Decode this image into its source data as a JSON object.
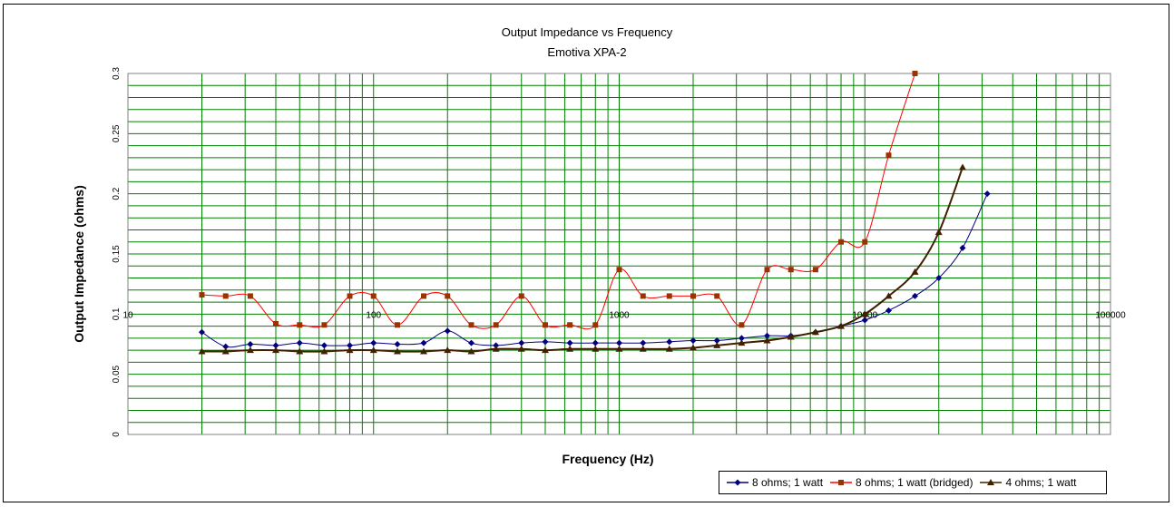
{
  "chart_data": {
    "type": "line",
    "title": "Output Impedance  vs Frequency",
    "subtitle": "Emotiva XPA-2",
    "xlabel": "Frequency (Hz)",
    "ylabel": "Output Impedance (ohms)",
    "x_scale": "log",
    "xlim": [
      10,
      100000
    ],
    "ylim": [
      0,
      0.3
    ],
    "x_ticks": [
      {
        "value": 10,
        "label": "10"
      },
      {
        "value": 100,
        "label": "100"
      },
      {
        "value": 1000,
        "label": "1000"
      },
      {
        "value": 10000,
        "label": "10000"
      },
      {
        "value": 100000,
        "label": "100000"
      }
    ],
    "y_ticks": [
      {
        "value": 0,
        "label": "0"
      },
      {
        "value": 0.05,
        "label": "0.05"
      },
      {
        "value": 0.1,
        "label": "0.1"
      },
      {
        "value": 0.15,
        "label": "0.15"
      },
      {
        "value": 0.2,
        "label": "0.2"
      },
      {
        "value": 0.25,
        "label": "0.25"
      },
      {
        "value": 0.3,
        "label": "0.3"
      }
    ],
    "grid": true,
    "grid_color": "#008000",
    "legend_position": "bottom-right",
    "x": [
      20,
      25,
      31.5,
      40,
      50,
      63,
      80,
      100,
      125,
      160,
      200,
      250,
      315,
      400,
      500,
      630,
      800,
      1000,
      1250,
      1600,
      2000,
      2500,
      3150,
      4000,
      5000,
      6300,
      8000,
      10000,
      12500,
      16000,
      20000,
      25000,
      31500,
      40000
    ],
    "series": [
      {
        "name": "8 ohms; 1 watt",
        "color": "#000080",
        "marker": "diamond",
        "values": [
          0.085,
          0.073,
          0.075,
          0.074,
          0.076,
          0.074,
          0.074,
          0.076,
          0.075,
          0.076,
          0.086,
          0.076,
          0.074,
          0.076,
          0.077,
          0.076,
          0.076,
          0.076,
          0.076,
          0.077,
          0.078,
          0.078,
          0.08,
          0.082,
          0.082,
          0.085,
          0.09,
          0.095,
          0.103,
          0.115,
          0.13,
          0.155,
          0.2,
          null
        ]
      },
      {
        "name": "8 ohms; 1 watt (bridged)",
        "color": "#993300",
        "marker": "square",
        "values": [
          0.116,
          0.115,
          0.115,
          0.092,
          0.091,
          0.091,
          0.115,
          0.115,
          0.091,
          0.115,
          0.115,
          0.091,
          0.091,
          0.115,
          0.091,
          0.091,
          0.091,
          0.137,
          0.115,
          0.115,
          0.115,
          0.115,
          0.091,
          0.137,
          0.137,
          0.137,
          0.16,
          0.16,
          0.232,
          0.3,
          null,
          null,
          null,
          null
        ]
      },
      {
        "name": "4 ohms; 1 watt",
        "color": "#402000",
        "marker": "triangle",
        "values": [
          0.069,
          0.069,
          0.07,
          0.07,
          0.069,
          0.069,
          0.07,
          0.07,
          0.069,
          0.069,
          0.07,
          0.069,
          0.071,
          0.071,
          0.07,
          0.071,
          0.071,
          0.071,
          0.071,
          0.071,
          0.072,
          0.074,
          0.076,
          0.078,
          0.081,
          0.085,
          0.09,
          0.1,
          0.115,
          0.135,
          0.168,
          0.222,
          null,
          null
        ]
      }
    ]
  }
}
